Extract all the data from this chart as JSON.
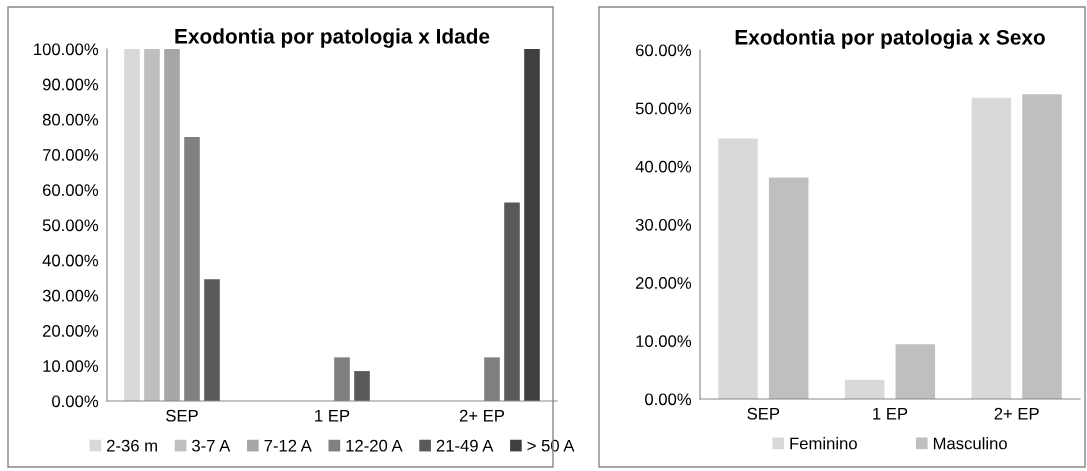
{
  "chart_data": [
    {
      "type": "bar",
      "title": "Exodontia por patologia x Idade",
      "categories": [
        "SEP",
        "1 EP",
        "2+ EP"
      ],
      "series": [
        {
          "name": "2-36 m",
          "color": "#d9d9d9",
          "values": [
            100,
            0,
            0
          ]
        },
        {
          "name": "3-7 A",
          "color": "#bfbfbf",
          "values": [
            100,
            0,
            0
          ]
        },
        {
          "name": "7-12 A",
          "color": "#a6a6a6",
          "values": [
            100,
            0,
            0
          ]
        },
        {
          "name": "12-20 A",
          "color": "#808080",
          "values": [
            75,
            12.4,
            12.4
          ]
        },
        {
          "name": "21-49 A",
          "color": "#595959",
          "values": [
            34.6,
            8.5,
            56.4
          ]
        },
        {
          "name": "> 50 A",
          "color": "#404040",
          "values": [
            0,
            0,
            100
          ]
        }
      ],
      "ylim": [
        0,
        100
      ],
      "yticks": [
        {
          "value": 0,
          "label": "0.00%"
        },
        {
          "value": 10,
          "label": "10.00%"
        },
        {
          "value": 20,
          "label": "20.00%"
        },
        {
          "value": 30,
          "label": "30.00%"
        },
        {
          "value": 40,
          "label": "40.00%"
        },
        {
          "value": 50,
          "label": "50.00%"
        },
        {
          "value": 60,
          "label": "60.00%"
        },
        {
          "value": 70,
          "label": "70.00%"
        },
        {
          "value": 80,
          "label": "80.00%"
        },
        {
          "value": 90,
          "label": "90.00%"
        },
        {
          "value": 100,
          "label": "100.00%"
        }
      ],
      "grid": false,
      "legend": "bottom"
    },
    {
      "type": "bar",
      "title": "Exodontia por patologia x Sexo",
      "categories": [
        "SEP",
        "1 EP",
        "2+ EP"
      ],
      "series": [
        {
          "name": "Feminino",
          "color": "#d9d9d9",
          "values": [
            44.8,
            3.3,
            51.8
          ]
        },
        {
          "name": "Masculino",
          "color": "#bfbfbf",
          "values": [
            38.1,
            9.4,
            52.4
          ]
        }
      ],
      "ylim": [
        0,
        60
      ],
      "yticks": [
        {
          "value": 0,
          "label": "0.00%"
        },
        {
          "value": 10,
          "label": "10.00%"
        },
        {
          "value": 20,
          "label": "20.00%"
        },
        {
          "value": 30,
          "label": "30.00%"
        },
        {
          "value": 40,
          "label": "40.00%"
        },
        {
          "value": 50,
          "label": "50.00%"
        },
        {
          "value": 60,
          "label": "60.00%"
        }
      ],
      "grid": false,
      "legend": "bottom"
    }
  ]
}
